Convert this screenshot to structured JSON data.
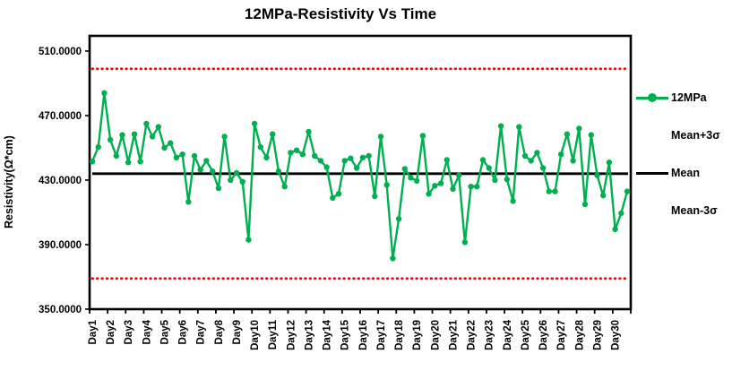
{
  "window": {
    "title": "12MPa-Resistivity Vs Time"
  },
  "chart_data": {
    "type": "line",
    "title": "12MPa-Resistivity Vs Time",
    "xlabel": "",
    "ylabel": "Resistivity(Ω*cm)",
    "y_tick_values": [
      510,
      470,
      430,
      390,
      350
    ],
    "y_tick_labels": [
      "510.0000",
      "470.0000",
      "430.0000",
      "390.0000",
      "350.0000"
    ],
    "ylim": [
      350,
      519.4
    ],
    "grid": "off",
    "x_categories": [
      "Day1",
      "Day2",
      "Day3",
      "Day4",
      "Day5",
      "Day6",
      "Day7",
      "Day8",
      "Day9",
      "Day10",
      "Day11",
      "Day12",
      "Day13",
      "Day14",
      "Day15",
      "Day16",
      "Day17",
      "Day18",
      "Day19",
      "Day20",
      "Day21",
      "Day22",
      "Day23",
      "Day24",
      "Day25",
      "Day26",
      "Day27",
      "Day28",
      "Day29",
      "Day30"
    ],
    "points_per_category": 3,
    "series": [
      {
        "name": "12MPa",
        "color": "#00B050",
        "marker": "circle",
        "values": [
          441.5,
          450.5,
          484.0,
          455.0,
          445.0,
          458.0,
          441.0,
          458.5,
          441.5,
          465.0,
          457.0,
          463.0,
          450.0,
          453.0,
          444.0,
          446.0,
          416.5,
          445.0,
          436.5,
          442.0,
          435.5,
          425.0,
          457.0,
          430.0,
          434.5,
          429.0,
          393.0,
          465.0,
          450.5,
          444.0,
          458.5,
          435.5,
          426.0,
          447.0,
          448.5,
          446.0,
          460.0,
          445.0,
          442.0,
          438.0,
          419.0,
          421.5,
          442.0,
          443.5,
          437.5,
          444.0,
          445.0,
          420.0,
          457.0,
          427.0,
          381.5,
          406.0,
          437.0,
          431.5,
          429.5,
          457.5,
          421.5,
          426.5,
          428.0,
          442.5,
          424.5,
          433.0,
          391.5,
          426.0,
          426.0,
          442.5,
          437.5,
          430.0,
          463.5,
          430.5,
          417.0,
          463.0,
          445.0,
          442.0,
          447.0,
          437.5,
          423.0,
          423.0,
          446.0,
          458.5,
          442.0,
          462.0,
          415.0,
          458.0,
          433.0,
          420.5,
          441.0,
          399.5,
          409.5,
          423.0
        ]
      }
    ],
    "reference_lines": [
      {
        "name": "Mean+3σ",
        "value": 499,
        "color": "#FF0000",
        "style": "dotted"
      },
      {
        "name": "Mean",
        "value": 434,
        "color": "#000000",
        "style": "solid"
      },
      {
        "name": "Mean-3σ",
        "value": 369,
        "color": "#FF0000",
        "style": "dotted"
      }
    ],
    "legend_position": "right"
  },
  "legend_entries": [
    {
      "label": "12MPa",
      "swatch": "line-marker",
      "color": "#00B050"
    },
    {
      "label": "Mean+3σ",
      "swatch": "dotted",
      "color": "#FF0000"
    },
    {
      "label": "Mean",
      "swatch": "solid",
      "color": "#000000"
    },
    {
      "label": "Mean-3σ",
      "swatch": "dotted",
      "color": "#FF0000"
    }
  ],
  "colors": {
    "series_green": "#00B050",
    "reference_red": "#FF0000",
    "axis_black": "#000000",
    "background": "#FFFFFF"
  }
}
